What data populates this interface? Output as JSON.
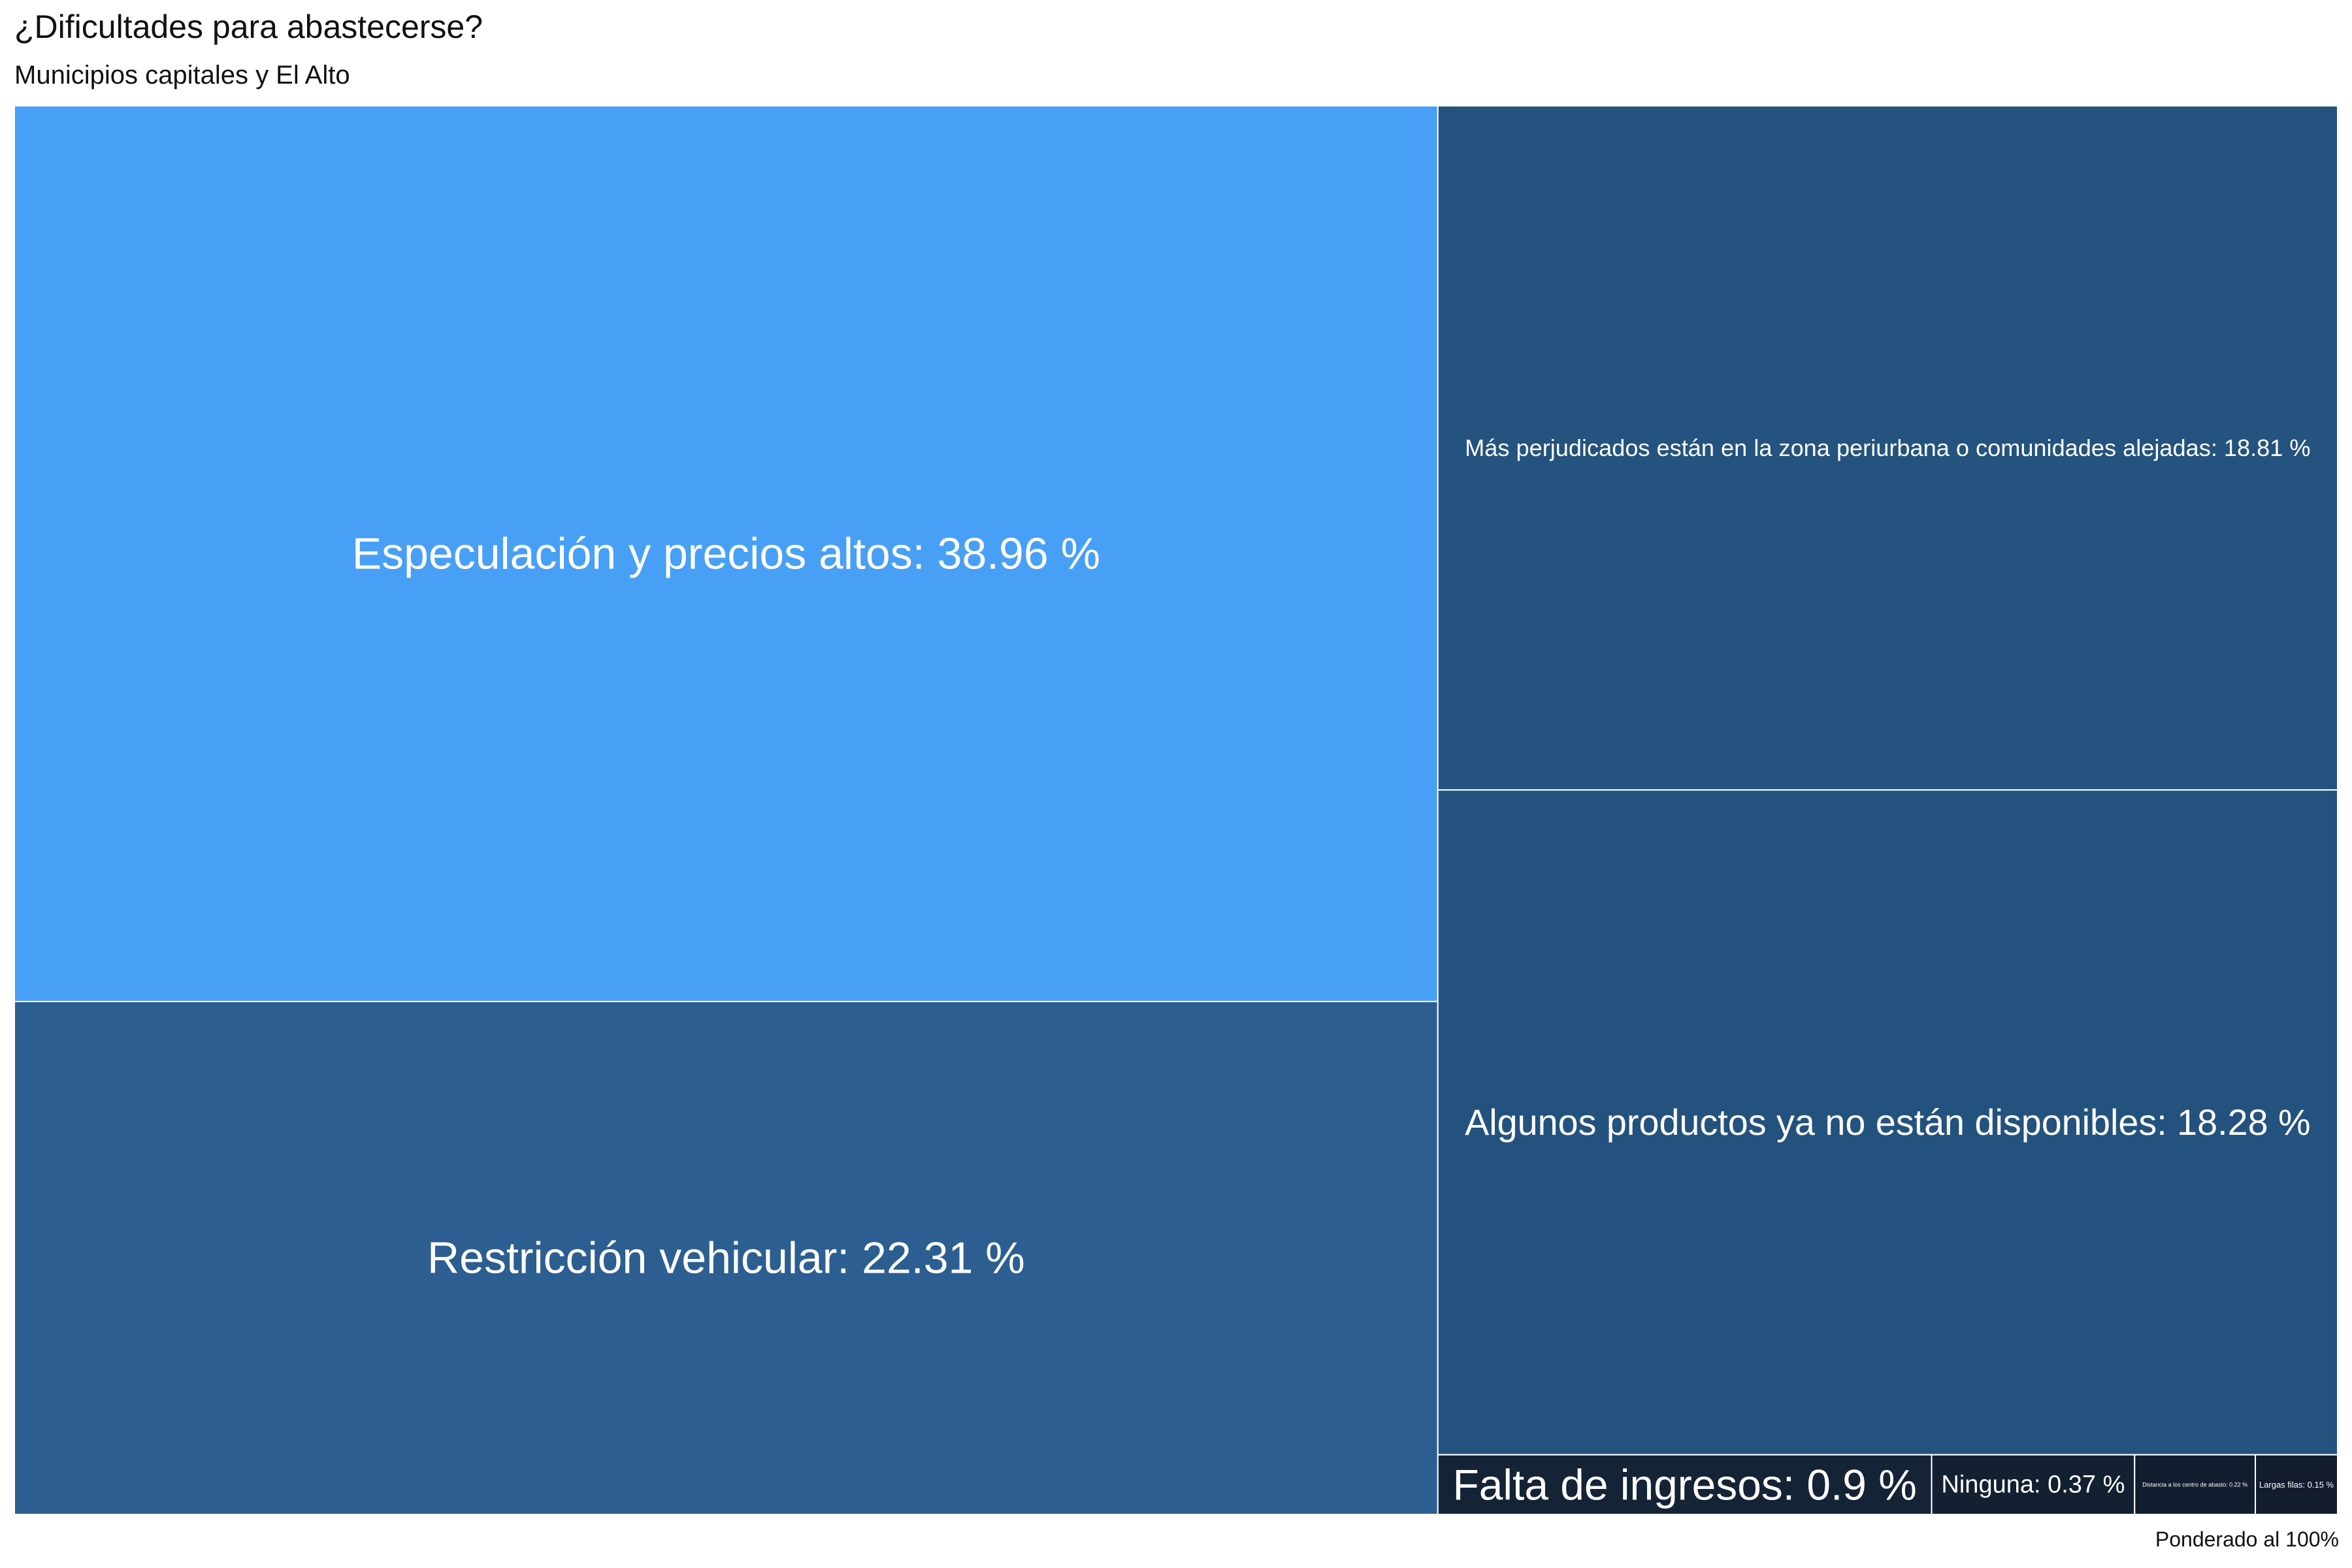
{
  "title": "¿Dificultades para abastecerse?",
  "subtitle": "Municipios capitales y El Alto",
  "caption": "Ponderado al 100%",
  "chart_data": {
    "type": "treemap",
    "unit": "%",
    "items": [
      {
        "label": "Especulación y precios altos: 38.96 %",
        "name": "Especulación y precios altos",
        "value": 38.96,
        "color": "#489ff6"
      },
      {
        "label": "Restricción vehicular: 22.31 %",
        "name": "Restricción vehicular",
        "value": 22.31,
        "color": "#2c5e91"
      },
      {
        "label": "Más perjudicados están en la zona periurbana o comunidades alejadas: 18.81 %",
        "name": "Más perjudicados están en la zona periurbana o comunidades alejadas",
        "value": 18.81,
        "color": "#24537f"
      },
      {
        "label": "Algunos productos ya no están disponibles: 18.28 %",
        "name": "Algunos productos ya no están disponibles",
        "value": 18.28,
        "color": "#24527e"
      },
      {
        "label": "Falta de ingresos: 0.9 %",
        "name": "Falta de ingresos",
        "value": 0.9,
        "color": "#152337"
      },
      {
        "label": "Ninguna: 0.37 %",
        "name": "Ninguna",
        "value": 0.37,
        "color": "#132032"
      },
      {
        "label": "Distancia a los centro de abasto: 0.22 %",
        "name": "Distancia a los centro de abasto",
        "value": 0.22,
        "color": "#121d2f"
      },
      {
        "label": "Largas filas: 0.15 %",
        "name": "Largas filas",
        "value": 0.15,
        "color": "#121c2d"
      }
    ]
  }
}
